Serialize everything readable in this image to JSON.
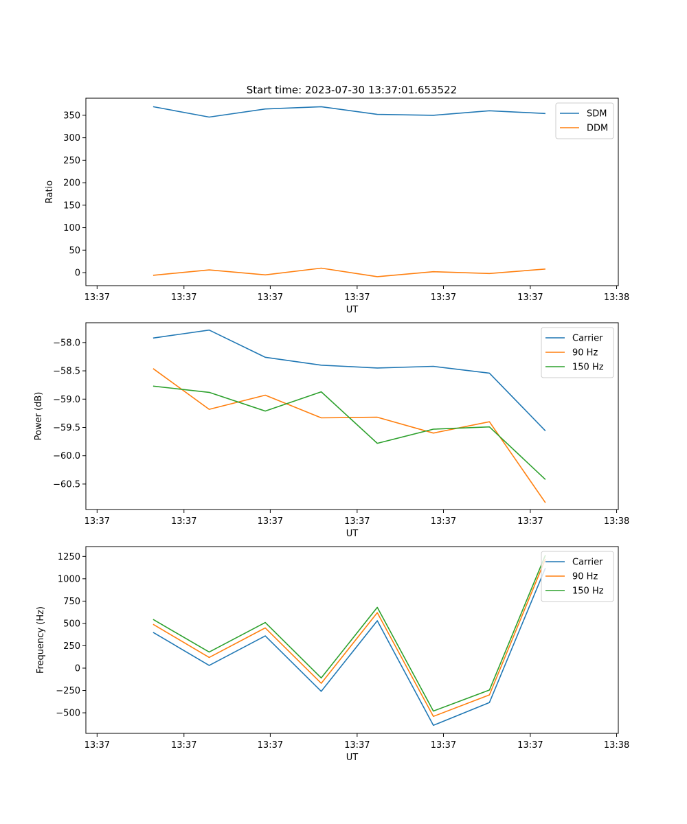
{
  "figure_title": "Start time: 2023-07-30 13:37:01.653522",
  "chart_data": [
    {
      "type": "line",
      "title": "Start time: 2023-07-30 13:37:01.653522",
      "xlabel": "UT",
      "ylabel": "Ratio",
      "x": [
        1,
        2,
        3,
        4,
        5,
        6,
        7,
        8
      ],
      "x_tick_values": [
        0,
        1.55,
        3.09,
        4.64,
        6.18,
        7.73,
        9.27
      ],
      "x_tick_labels": [
        "13:37",
        "13:37",
        "13:37",
        "13:37",
        "13:37",
        "13:37",
        "13:38"
      ],
      "xlim": [
        -0.2,
        9.3
      ],
      "ylim": [
        -29,
        388
      ],
      "y_ticks": [
        0,
        50,
        100,
        150,
        200,
        250,
        300,
        350
      ],
      "y_tick_labels": [
        "0",
        "50",
        "100",
        "150",
        "200",
        "250",
        "300",
        "350"
      ],
      "legend_position": "top-right",
      "grid": false,
      "series": [
        {
          "name": "SDM",
          "color": "#1f77b4",
          "values": [
            369,
            346,
            364,
            369,
            352,
            350,
            360,
            354
          ]
        },
        {
          "name": "DDM",
          "color": "#ff7f0e",
          "values": [
            -6,
            6,
            -5,
            10,
            -9,
            2,
            -2,
            8
          ]
        }
      ]
    },
    {
      "type": "line",
      "title": "",
      "xlabel": "UT",
      "ylabel": "Power (dB)",
      "x": [
        1,
        2,
        3,
        4,
        5,
        6,
        7,
        8
      ],
      "x_tick_values": [
        0,
        1.55,
        3.09,
        4.64,
        6.18,
        7.73,
        9.27
      ],
      "x_tick_labels": [
        "13:37",
        "13:37",
        "13:37",
        "13:37",
        "13:37",
        "13:37",
        "13:38"
      ],
      "xlim": [
        -0.2,
        9.3
      ],
      "ylim": [
        -60.95,
        -57.65
      ],
      "y_ticks": [
        -58.0,
        -58.5,
        -59.0,
        -59.5,
        -60.0,
        -60.5
      ],
      "y_tick_labels": [
        "−58.0",
        "−58.5",
        "−59.0",
        "−59.5",
        "−60.0",
        "−60.5"
      ],
      "legend_position": "top-right",
      "grid": false,
      "series": [
        {
          "name": "Carrier",
          "color": "#1f77b4",
          "values": [
            -57.92,
            -57.78,
            -58.26,
            -58.4,
            -58.45,
            -58.42,
            -58.54,
            -59.56
          ]
        },
        {
          "name": "90 Hz",
          "color": "#ff7f0e",
          "values": [
            -58.46,
            -59.18,
            -58.93,
            -59.33,
            -59.32,
            -59.6,
            -59.4,
            -60.83
          ]
        },
        {
          "name": "150 Hz",
          "color": "#2ca02c",
          "values": [
            -58.77,
            -58.88,
            -59.21,
            -58.87,
            -59.78,
            -59.53,
            -59.49,
            -60.42
          ]
        }
      ]
    },
    {
      "type": "line",
      "title": "",
      "xlabel": "UT",
      "ylabel": "Frequency (Hz)",
      "x": [
        1,
        2,
        3,
        4,
        5,
        6,
        7,
        8
      ],
      "x_tick_values": [
        0,
        1.55,
        3.09,
        4.64,
        6.18,
        7.73,
        9.27
      ],
      "x_tick_labels": [
        "13:37",
        "13:37",
        "13:37",
        "13:37",
        "13:37",
        "13:37",
        "13:38"
      ],
      "xlim": [
        -0.2,
        9.3
      ],
      "ylim": [
        -730,
        1360
      ],
      "y_ticks": [
        -500,
        -250,
        0,
        250,
        500,
        750,
        1000,
        1250
      ],
      "y_tick_labels": [
        "−500",
        "−250",
        "0",
        "250",
        "500",
        "750",
        "1000",
        "1250"
      ],
      "legend_position": "top-right",
      "grid": false,
      "series": [
        {
          "name": "Carrier",
          "color": "#1f77b4",
          "values": [
            400,
            30,
            360,
            -260,
            530,
            -640,
            -385,
            1120
          ]
        },
        {
          "name": "90 Hz",
          "color": "#ff7f0e",
          "values": [
            490,
            120,
            450,
            -170,
            620,
            -540,
            -300,
            1220
          ]
        },
        {
          "name": "150 Hz",
          "color": "#2ca02c",
          "values": [
            545,
            180,
            510,
            -110,
            680,
            -480,
            -245,
            1265
          ]
        }
      ]
    }
  ]
}
